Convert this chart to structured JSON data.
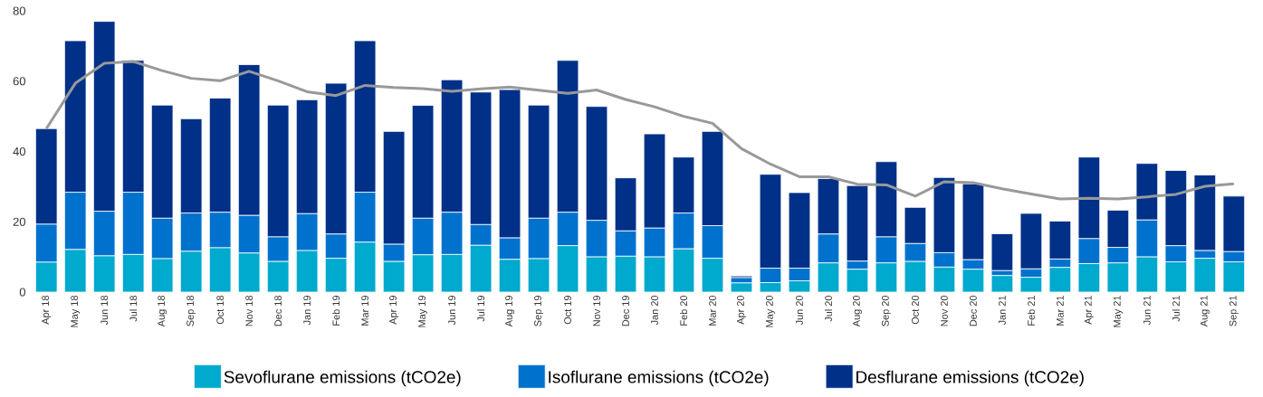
{
  "chart_data": {
    "type": "bar",
    "stacked": true,
    "categories": [
      "Apr 18",
      "May 18",
      "Jun 18",
      "Jul 18",
      "Aug 18",
      "Sep 18",
      "Oct 18",
      "Nov 18",
      "Dec 18",
      "Jan 19",
      "Feb 19",
      "Mar 19",
      "Apr 19",
      "May 19",
      "Jun 19",
      "Jul 19",
      "Aug 19",
      "Sep 19",
      "Oct 19",
      "Nov 19",
      "Dec 19",
      "Jan 20",
      "Feb 20",
      "Mar 20",
      "Apr 20",
      "May 20",
      "Jun 20",
      "Jul 20",
      "Aug 20",
      "Sep 20",
      "Oct 20",
      "Nov 20",
      "Dec 20",
      "Jan 21",
      "Feb 21",
      "Mar 21",
      "Apr 21",
      "May 21",
      "Jun 21",
      "Jul 21",
      "Aug 21",
      "Sep 21"
    ],
    "series": [
      {
        "name": "Sevoflurane emissions (tCO2e)",
        "color": "#00a9ce",
        "values": [
          8.5,
          12.1,
          10.3,
          10.7,
          9.5,
          11.6,
          12.6,
          11.1,
          8.7,
          11.8,
          9.6,
          14.2,
          8.7,
          10.6,
          10.7,
          13.3,
          9.3,
          9.5,
          13.2,
          10,
          10.2,
          10,
          12.3,
          9.6,
          2.6,
          2.7,
          3.2,
          8.3,
          6.5,
          8.3,
          8.7,
          7.1,
          6.5,
          4.7,
          4.2,
          7,
          8.1,
          8.3,
          10,
          8.6,
          9.6,
          8.6
        ]
      },
      {
        "name": "Isoflurane emissions (tCO2e)",
        "color": "#0072ce",
        "values": [
          10.8,
          16.3,
          12.7,
          17.7,
          11.5,
          10.9,
          10.1,
          10.7,
          7,
          10.5,
          6.9,
          14.2,
          4.9,
          10.4,
          12,
          5.9,
          6.1,
          11.5,
          9.5,
          10.4,
          7.2,
          8.2,
          10.2,
          9.3,
          1.5,
          4.1,
          3.6,
          8.2,
          2.3,
          7.4,
          5.1,
          4.1,
          2.7,
          1.4,
          2.4,
          2.4,
          7.1,
          4.4,
          10.5,
          4.6,
          2.2,
          2.9
        ]
      },
      {
        "name": "Desflurane emissions (tCO2e)",
        "color": "#003087",
        "values": [
          27.2,
          43.1,
          54,
          37.5,
          32.2,
          26.8,
          32.5,
          42.9,
          37.5,
          32.4,
          42.9,
          43.1,
          32.1,
          32.1,
          37.7,
          37.7,
          42.2,
          32.2,
          43.2,
          32.4,
          15.1,
          26.8,
          15.9,
          26.8,
          0.5,
          26.7,
          21.5,
          15.8,
          21.5,
          21.4,
          10.3,
          21.4,
          21.6,
          10.5,
          15.8,
          10.8,
          23.2,
          10.6,
          16.1,
          21.4,
          21.5,
          15.8
        ]
      },
      {
        "type": "line",
        "color": "#999999",
        "values": [
          46.5,
          59.4,
          65.1,
          65.6,
          63,
          60.8,
          60.1,
          62.8,
          60.1,
          57,
          55.9,
          58.8,
          58.2,
          57.9,
          57.1,
          57.8,
          58.3,
          57.4,
          56.5,
          57.5,
          54.8,
          52.7,
          50,
          48,
          40.8,
          36.4,
          32.8,
          32.8,
          30.7,
          30.5,
          27.3,
          31.4,
          31.1,
          29.4,
          27.9,
          26.5,
          26.7,
          26.5,
          27.1,
          27.8,
          30.1,
          30.8
        ]
      }
    ],
    "ylim": [
      0,
      80
    ],
    "yticks": [
      0,
      20,
      40,
      60,
      80
    ],
    "legend": "bottom"
  }
}
